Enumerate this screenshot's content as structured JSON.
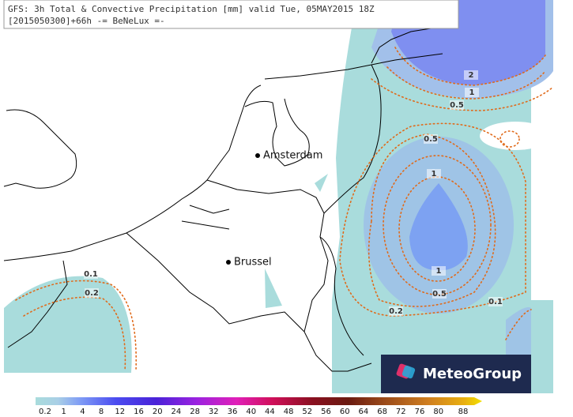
{
  "header": {
    "line1": "GFS: 3h Total & Convective Precipitation [mm] valid Tue, 05MAY2015 18Z",
    "line2": "[2015050300]+66h -= BeNeLux =-"
  },
  "cities": [
    "Amsterdam",
    "Brussel"
  ],
  "contour_labels": [
    "2",
    "1",
    "0.5",
    "0.5",
    "1",
    "1",
    "0.5",
    "0.1",
    "0.2",
    "0.1",
    "0.2"
  ],
  "legend": {
    "ticks": [
      0.2,
      1,
      4,
      8,
      12,
      16,
      20,
      24,
      28,
      32,
      36,
      40,
      44,
      48,
      52,
      56,
      60,
      64,
      68,
      72,
      76,
      80,
      88
    ]
  },
  "logo": "MeteoGroup"
}
